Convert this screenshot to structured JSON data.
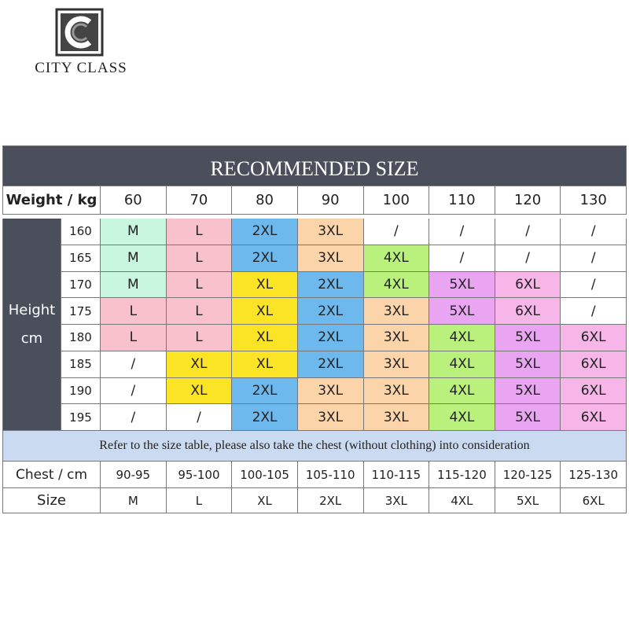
{
  "brand": "CITY CLASS",
  "table": {
    "title": "RECOMMENDED SIZE",
    "weight_label": "Weight / kg",
    "weights": [
      "60",
      "70",
      "80",
      "90",
      "100",
      "110",
      "120",
      "130"
    ],
    "height_label": [
      "Height",
      "cm"
    ],
    "rows": [
      {
        "height": "160",
        "sizes": [
          "M",
          "L",
          "2XL",
          "3XL",
          "/",
          "/",
          "/",
          "/"
        ]
      },
      {
        "height": "165",
        "sizes": [
          "M",
          "L",
          "2XL",
          "3XL",
          "4XL",
          "/",
          "/",
          "/"
        ]
      },
      {
        "height": "170",
        "sizes": [
          "M",
          "L",
          "XL",
          "2XL",
          "4XL",
          "5XL",
          "6XL",
          "/"
        ]
      },
      {
        "height": "175",
        "sizes": [
          "L",
          "L",
          "XL",
          "2XL",
          "3XL",
          "5XL",
          "6XL",
          "/"
        ]
      },
      {
        "height": "180",
        "sizes": [
          "L",
          "L",
          "XL",
          "2XL",
          "3XL",
          "4XL",
          "5XL",
          "6XL"
        ]
      },
      {
        "height": "185",
        "sizes": [
          "/",
          "XL",
          "XL",
          "2XL",
          "3XL",
          "4XL",
          "5XL",
          "6XL"
        ]
      },
      {
        "height": "190",
        "sizes": [
          "/",
          "XL",
          "2XL",
          "3XL",
          "3XL",
          "4XL",
          "5XL",
          "6XL"
        ]
      },
      {
        "height": "195",
        "sizes": [
          "/",
          "/",
          "2XL",
          "3XL",
          "3XL",
          "4XL",
          "5XL",
          "6XL"
        ]
      }
    ],
    "size_colors": {
      "M": "#c9f6de",
      "L": "#f9c1cb",
      "XL": "#fbe325",
      "2XL": "#6db9ee",
      "3XL": "#fcd4aa",
      "4XL": "#baf07c",
      "5XL": "#e9a4f2",
      "6XL": "#f6b6e8",
      "/": "#ffffff"
    },
    "note": "Refer to the size table, please also take the chest (without clothing) into consideration",
    "chest_label": "Chest / cm",
    "chest": [
      "90-95",
      "95-100",
      "100-105",
      "105-110",
      "110-115",
      "115-120",
      "120-125",
      "125-130"
    ],
    "size_label": "Size",
    "chest_sizes": [
      "M",
      "L",
      "XL",
      "2XL",
      "3XL",
      "4XL",
      "5XL",
      "6XL"
    ]
  }
}
